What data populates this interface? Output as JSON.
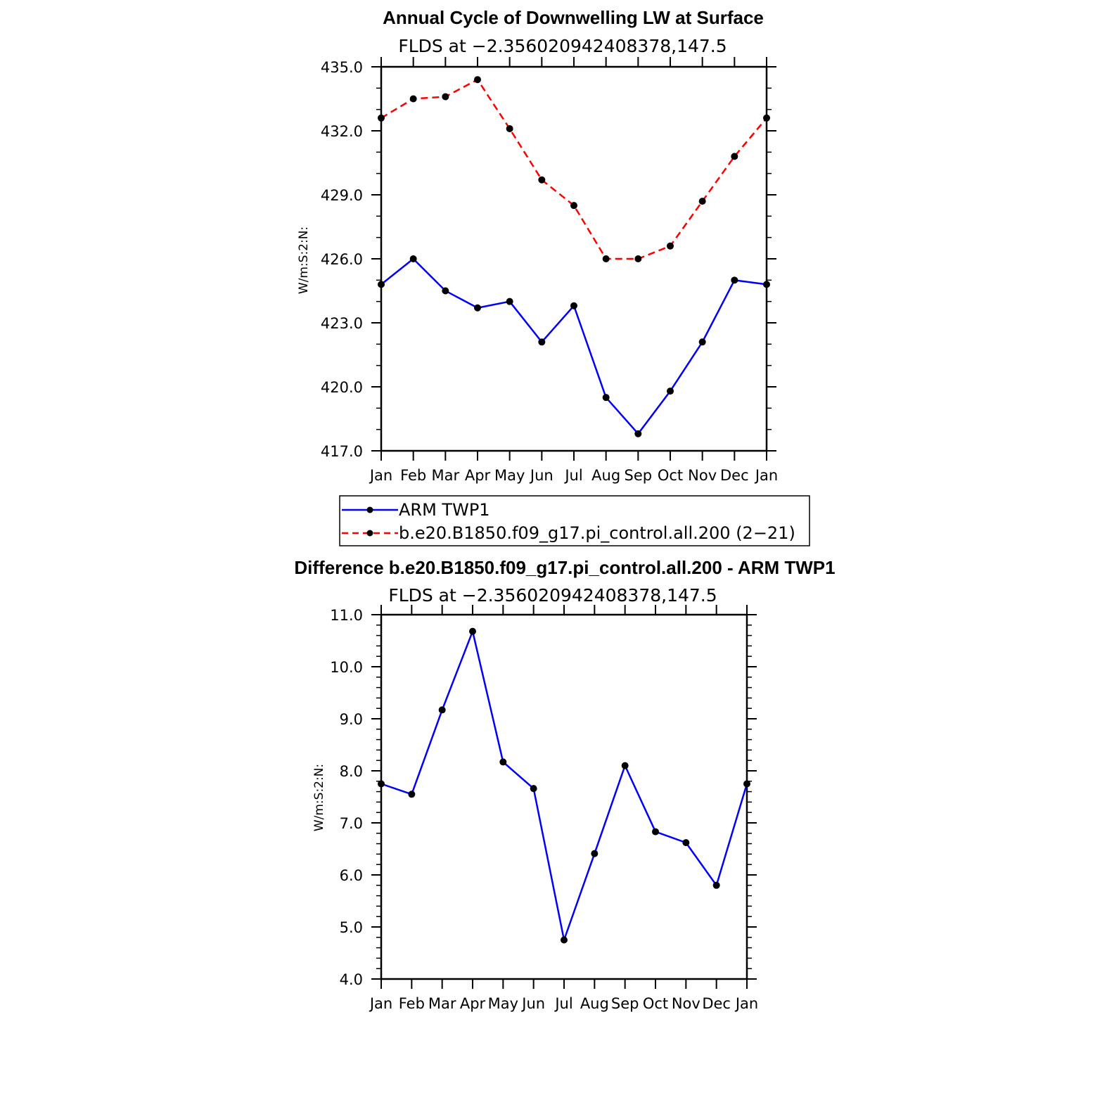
{
  "chart_data": [
    {
      "type": "line",
      "title": "Annual Cycle of Downwelling LW at Surface",
      "subtitle": "FLDS at −2.356020942408378,147.5",
      "xlabel": "",
      "ylabel": "W/m:S:2:N:",
      "categories": [
        "Jan",
        "Feb",
        "Mar",
        "Apr",
        "May",
        "Jun",
        "Jul",
        "Aug",
        "Sep",
        "Oct",
        "Nov",
        "Dec",
        "Jan"
      ],
      "ylim": [
        417.0,
        435.0
      ],
      "yticks": [
        "417.0",
        "420.0",
        "423.0",
        "426.0",
        "429.0",
        "432.0",
        "435.0"
      ],
      "series": [
        {
          "name": "ARM TWP1",
          "color": "#0000ff",
          "dash": "solid",
          "values": [
            424.8,
            426.0,
            424.5,
            423.7,
            424.0,
            422.1,
            423.8,
            419.5,
            417.8,
            419.8,
            422.1,
            425.0,
            424.8
          ]
        },
        {
          "name": "b.e20.B1850.f09_g17.pi_control.all.200 (2−21)",
          "color": "#ff0000",
          "dash": "dashed",
          "values": [
            432.6,
            433.5,
            433.6,
            434.4,
            432.1,
            429.7,
            428.5,
            426.0,
            426.0,
            426.6,
            428.7,
            430.8,
            432.6
          ]
        }
      ]
    },
    {
      "type": "line",
      "title": "Difference b.e20.B1850.f09_g17.pi_control.all.200 - ARM TWP1",
      "subtitle": "FLDS at −2.356020942408378,147.5",
      "xlabel": "",
      "ylabel": "W/m:S:2:N:",
      "categories": [
        "Jan",
        "Feb",
        "Mar",
        "Apr",
        "May",
        "Jun",
        "Jul",
        "Aug",
        "Sep",
        "Oct",
        "Nov",
        "Dec",
        "Jan"
      ],
      "ylim": [
        4.0,
        11.0
      ],
      "yticks": [
        "4.0",
        "5.0",
        "6.0",
        "7.0",
        "8.0",
        "9.0",
        "10.0",
        "11.0"
      ],
      "series": [
        {
          "name": "Difference",
          "color": "#0000ff",
          "dash": "solid",
          "values": [
            7.75,
            7.55,
            9.17,
            10.68,
            8.17,
            7.66,
            4.75,
            6.41,
            8.1,
            6.83,
            6.62,
            5.8,
            7.75
          ]
        }
      ]
    }
  ],
  "legend": [
    {
      "label": "ARM TWP1",
      "color": "#0000ff",
      "dash": "solid"
    },
    {
      "label": "b.e20.B1850.f09_g17.pi_control.all.200 (2−21)",
      "color": "#ff0000",
      "dash": "dashed"
    }
  ]
}
